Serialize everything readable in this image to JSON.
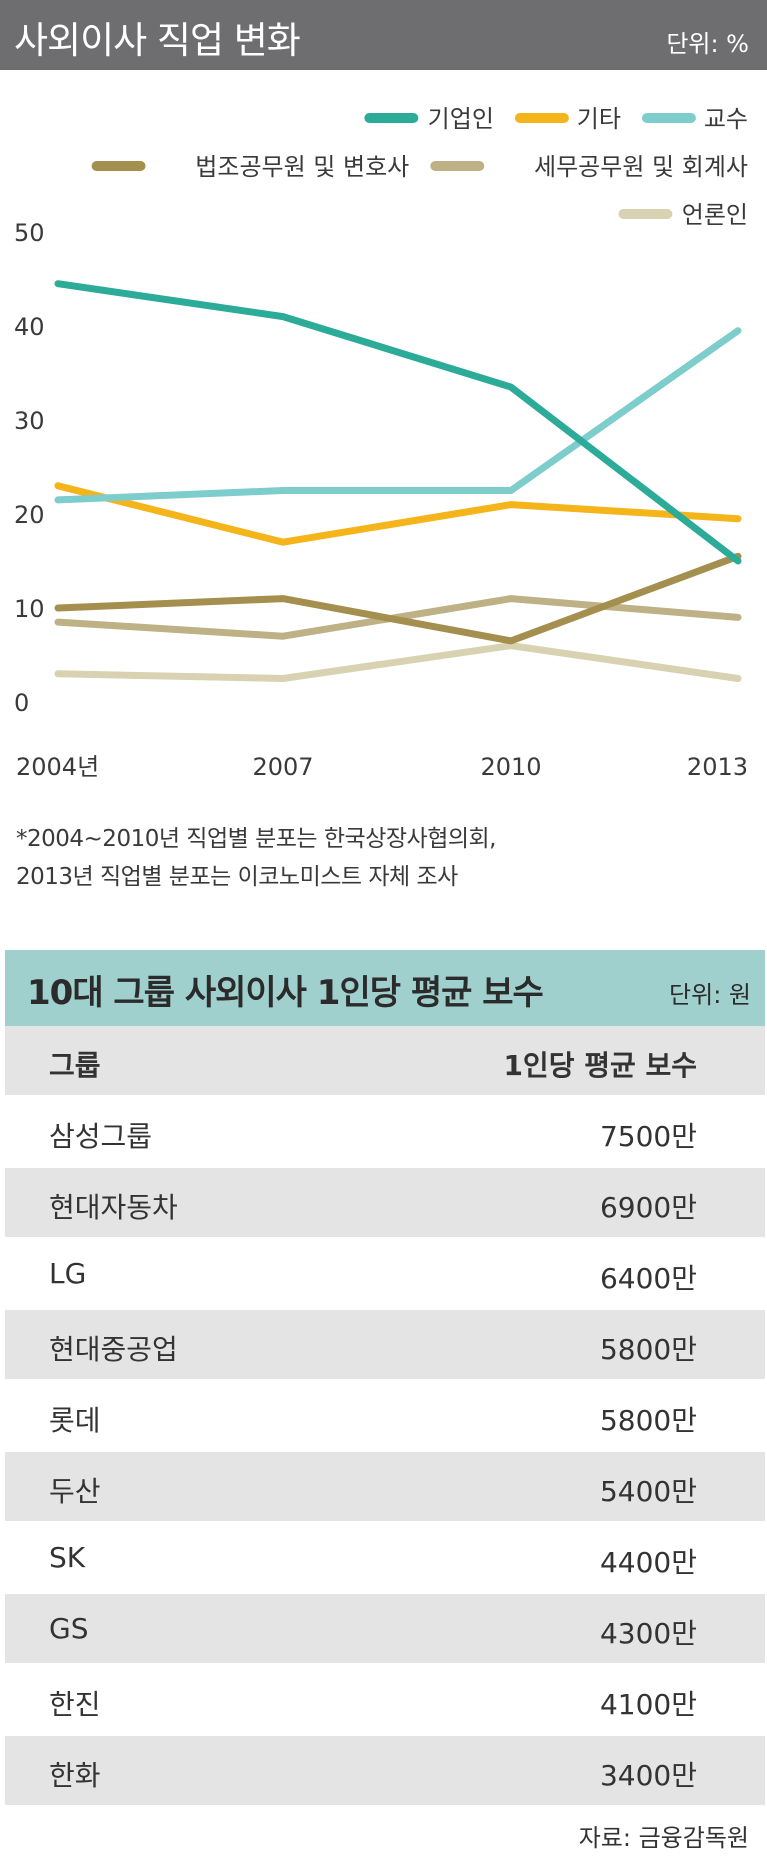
{
  "header": {
    "title": "사외이사 직업 변화",
    "unit": "단위: %"
  },
  "chart_data": {
    "type": "line",
    "categories": [
      "2004년",
      "2007",
      "2010",
      "2013"
    ],
    "ylim": [
      0,
      50
    ],
    "y_ticks": [
      "0",
      "10",
      "20",
      "30",
      "40",
      "50"
    ],
    "legend_position": "top-right",
    "series": [
      {
        "name": "기업인",
        "values": [
          44.5,
          41,
          33.5,
          15
        ],
        "color": "#2bab98"
      },
      {
        "name": "기타",
        "values": [
          23,
          17,
          21,
          19.5
        ],
        "color": "#f4b41a"
      },
      {
        "name": "교수",
        "values": [
          21.5,
          22.5,
          22.5,
          39.5
        ],
        "color": "#7ccdcb"
      },
      {
        "name": "법조공무원 및 변호사",
        "values": [
          10,
          11,
          6.5,
          15.5
        ],
        "color": "#a48f4f"
      },
      {
        "name": "세무공무원 및 회계사",
        "values": [
          8.5,
          7,
          11,
          9
        ],
        "color": "#bdb185"
      },
      {
        "name": "언론인",
        "values": [
          3,
          2.5,
          6,
          2.5
        ],
        "color": "#d8d2b3"
      }
    ]
  },
  "note": {
    "line1": "*2004~2010년 직업별 분포는 한국상장사협의회,",
    "line2": "2013년 직업별 분포는 이코노미스트 자체 조사"
  },
  "table": {
    "title": "10대 그룹 사외이사 1인당 평균 보수",
    "unit": "단위: 원",
    "headers": [
      "그룹",
      "1인당 평균 보수"
    ],
    "rows": [
      [
        "삼성그룹",
        "7500만"
      ],
      [
        "현대자동차",
        "6900만"
      ],
      [
        "LG",
        "6400만"
      ],
      [
        "현대중공업",
        "5800만"
      ],
      [
        "롯데",
        "5800만"
      ],
      [
        "두산",
        "5400만"
      ],
      [
        "SK",
        "4400만"
      ],
      [
        "GS",
        "4300만"
      ],
      [
        "한진",
        "4100만"
      ],
      [
        "한화",
        "3400만"
      ]
    ]
  },
  "source": "자료: 금융감독원"
}
